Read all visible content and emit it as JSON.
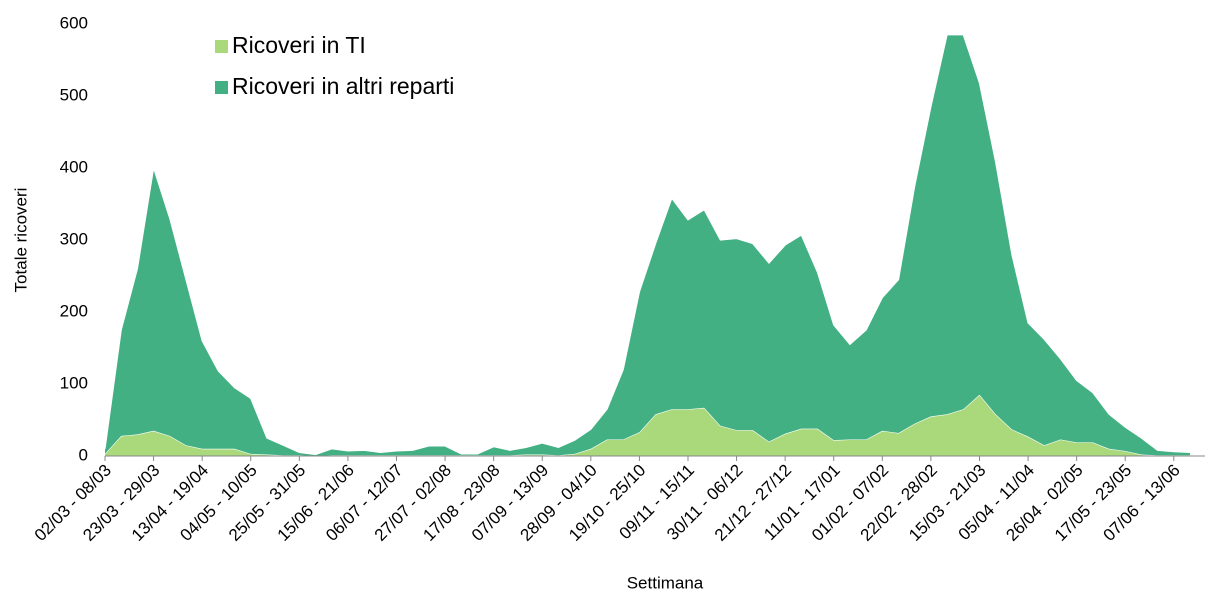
{
  "chart_data": {
    "type": "stacked-area",
    "y_label": "Totale ricoveri",
    "x_label": "Settimana",
    "categories": [
      "02/03 - 08/03",
      null,
      null,
      "23/03 - 29/03",
      null,
      null,
      "13/04 - 19/04",
      null,
      null,
      "04/05 - 10/05",
      null,
      null,
      "25/05 - 31/05",
      null,
      null,
      "15/06 - 21/06",
      null,
      null,
      "06/07 - 12/07",
      null,
      null,
      "27/07 - 02/08",
      null,
      null,
      "17/08 - 23/08",
      null,
      null,
      "07/09 - 13/09",
      null,
      null,
      "28/09 - 04/10",
      null,
      null,
      "19/10 - 25/10",
      null,
      null,
      "09/11 - 15/11",
      null,
      null,
      "30/11 - 06/12",
      null,
      null,
      "21/12 - 27/12",
      null,
      null,
      "11/01 - 17/01",
      null,
      null,
      "01/02 - 07/02",
      null,
      null,
      "22/02 - 28/02",
      null,
      null,
      "15/03 - 21/03",
      null,
      null,
      "05/04 - 11/04",
      null,
      null,
      "26/04 - 02/05",
      null,
      null,
      "17/05 - 23/05",
      null,
      null,
      "07/06 - 13/06",
      null
    ],
    "series": [
      {
        "name": "Ricoveri in TI",
        "color": "#a9d97a",
        "values": [
          3,
          28,
          30,
          35,
          28,
          15,
          10,
          10,
          10,
          3,
          2,
          1,
          1,
          0,
          1,
          1,
          1,
          1,
          1,
          1,
          1,
          1,
          1,
          1,
          1,
          1,
          2,
          2,
          1,
          3,
          10,
          23,
          23,
          33,
          58,
          65,
          65,
          67,
          42,
          36,
          36,
          20,
          31,
          38,
          38,
          22,
          23,
          23,
          35,
          32,
          45,
          55,
          58,
          65,
          85,
          58,
          37,
          27,
          15,
          23,
          19,
          19,
          10,
          7,
          2,
          1,
          1,
          1
        ]
      },
      {
        "name": "Ricoveri in altri reparti",
        "color": "#43b083",
        "values": [
          7,
          147,
          230,
          365,
          302,
          230,
          150,
          108,
          85,
          77,
          23,
          14,
          4,
          2,
          9,
          6,
          7,
          4,
          6,
          7,
          13,
          13,
          2,
          2,
          12,
          7,
          10,
          16,
          11,
          19,
          27,
          42,
          97,
          195,
          237,
          293,
          263,
          275,
          258,
          266,
          259,
          248,
          262,
          269,
          217,
          160,
          132,
          152,
          185,
          213,
          330,
          430,
          527,
          520,
          433,
          350,
          243,
          158,
          147,
          112,
          86,
          69,
          48,
          33,
          23,
          7,
          5,
          4
        ]
      }
    ],
    "ylim": [
      0,
      600
    ],
    "yticks": [
      0,
      100,
      200,
      300,
      400,
      500,
      600
    ],
    "grid": false,
    "legend": "top-left"
  }
}
